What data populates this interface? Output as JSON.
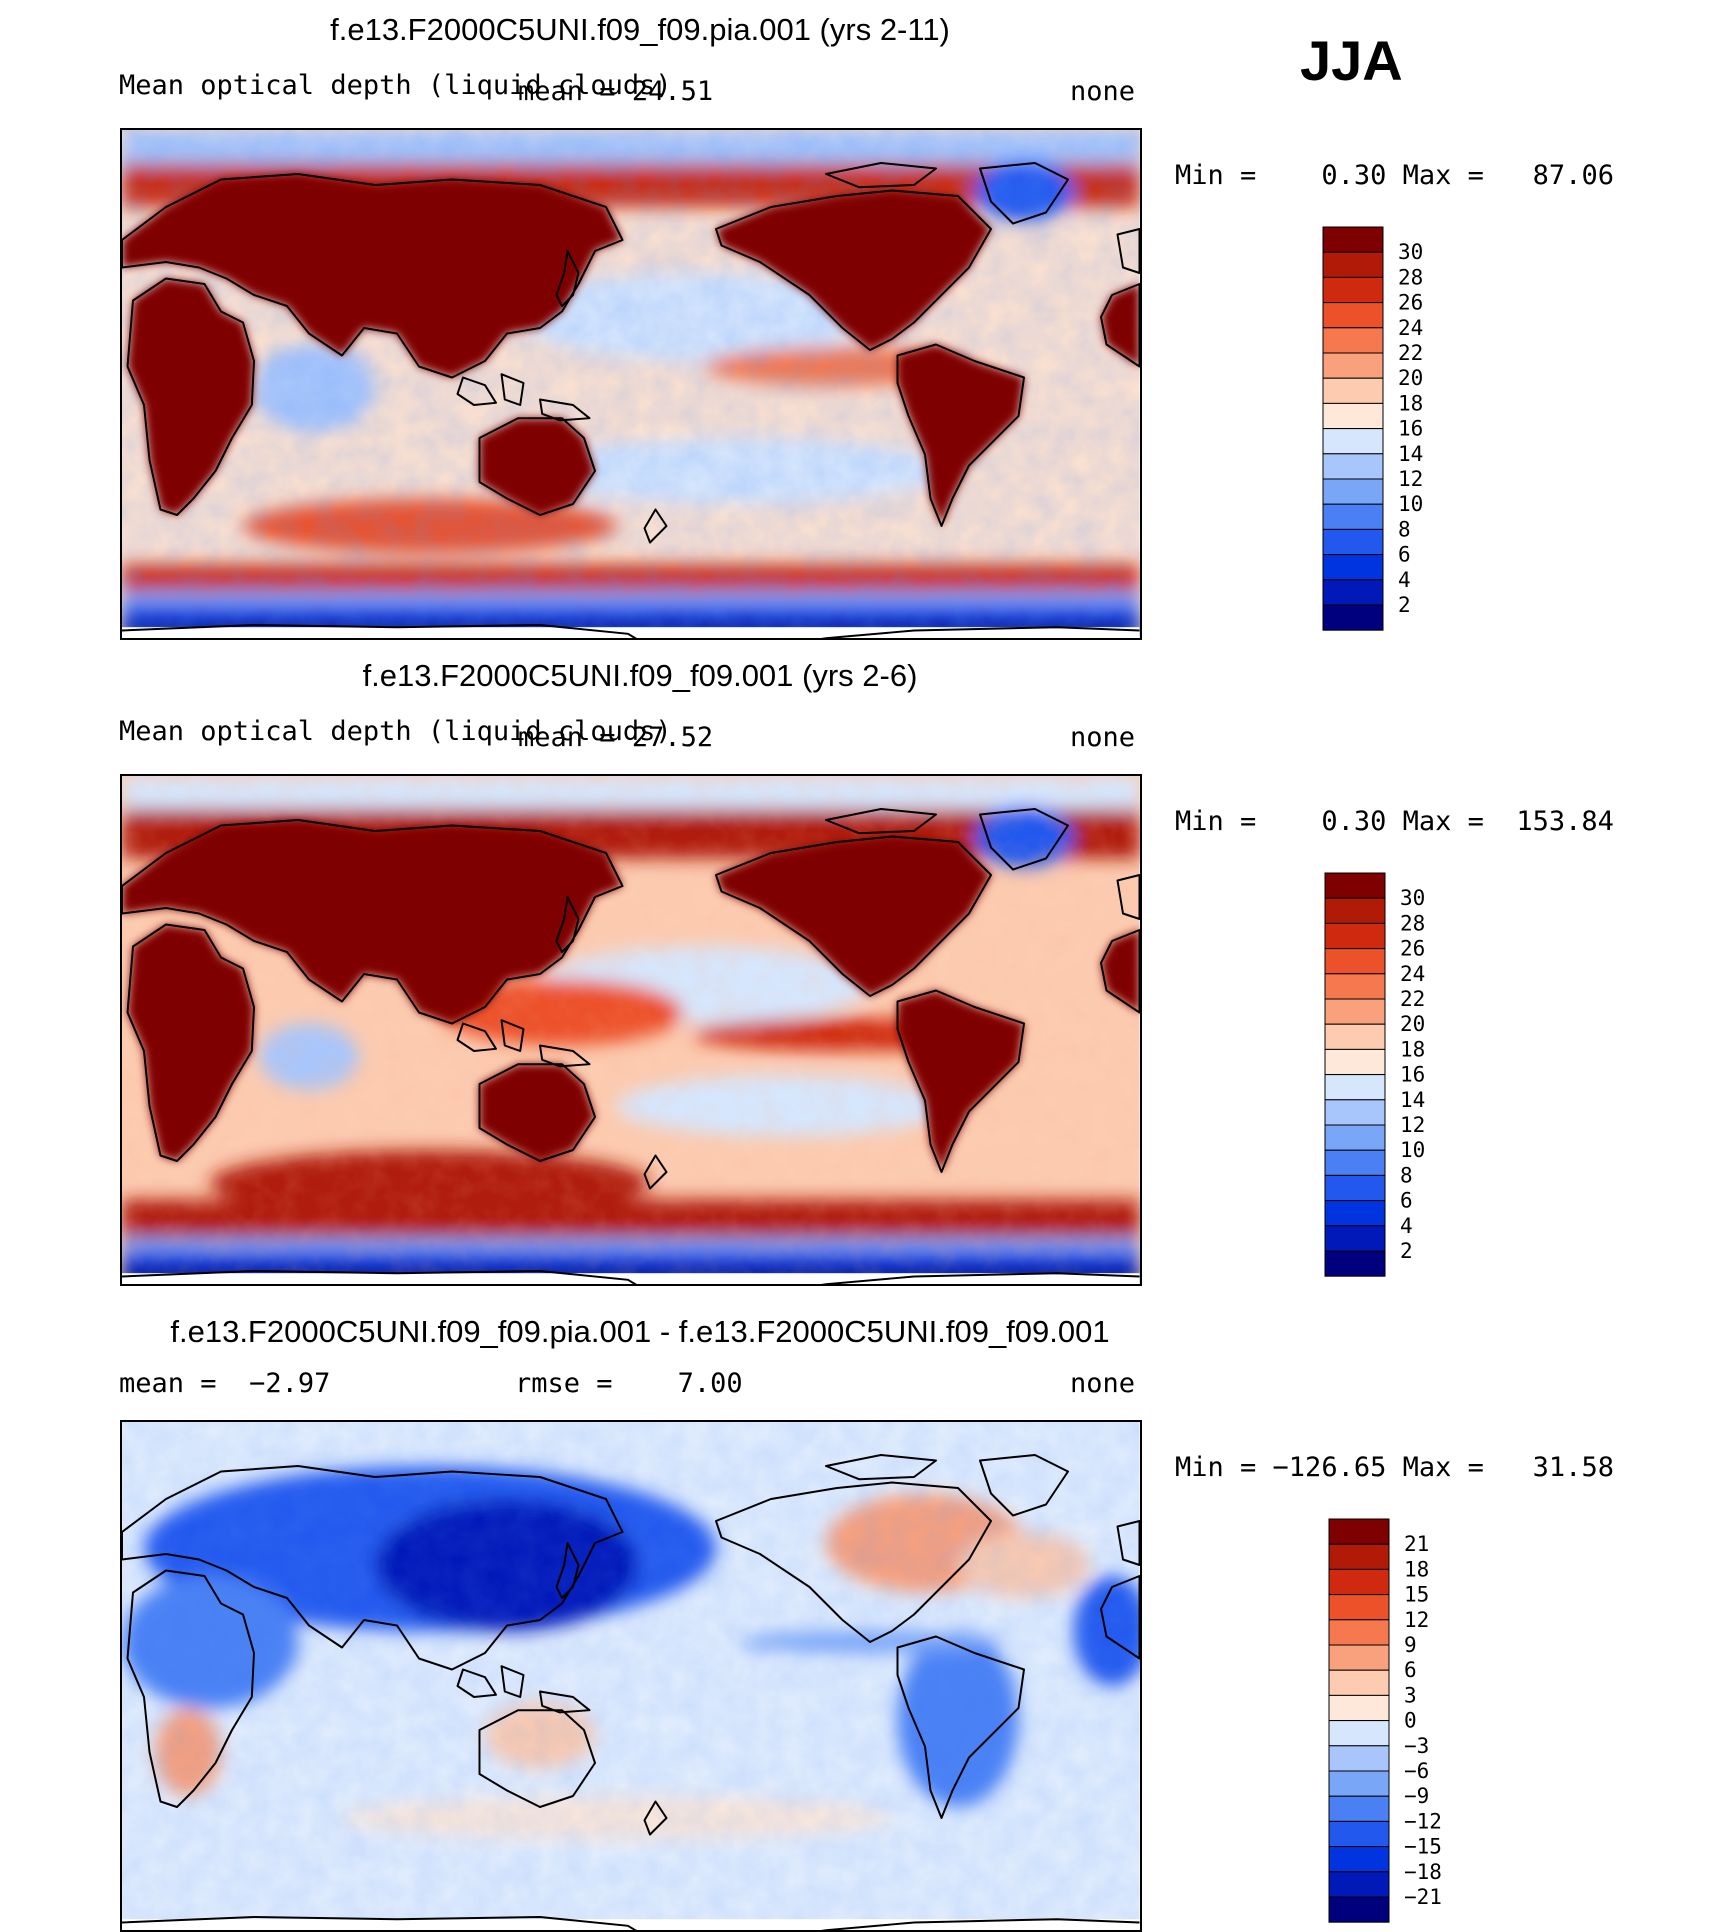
{
  "season": "JJA",
  "panels": [
    {
      "title": "f.e13.F2000C5UNI.f09_f09.pia.001 (yrs 2-11)",
      "variable": "Mean optical depth (liquid clouds)",
      "stat1_label": "mean =",
      "stat1_value": "24.51",
      "units": "none",
      "min_label": "Min =",
      "min_value": "0.30",
      "max_label": "Max =",
      "max_value": "87.06"
    },
    {
      "title": "f.e13.F2000C5UNI.f09_f09.001 (yrs 2-6)",
      "variable": "Mean optical depth (liquid clouds)",
      "stat1_label": "mean =",
      "stat1_value": "27.52",
      "units": "none",
      "min_label": "Min =",
      "min_value": "0.30",
      "max_label": "Max =",
      "max_value": "153.84"
    },
    {
      "title": "f.e13.F2000C5UNI.f09_f09.pia.001 - f.e13.F2000C5UNI.f09_f09.001",
      "stat1_label": "mean =",
      "stat1_value": "−2.97",
      "stat2_label": "rmse =",
      "stat2_value": "7.00",
      "units": "none",
      "min_label": "Min =",
      "min_value": "−126.65",
      "max_label": "Max =",
      "max_value": "31.58"
    }
  ],
  "chart_data": [
    {
      "type": "heatmap",
      "projection": "cylindrical equidistant, global, centered on Pacific",
      "title": "f.e13.F2000C5UNI.f09_f09.pia.001 (yrs 2-11)",
      "variable": "Mean optical depth (liquid clouds)",
      "units": "none",
      "mean": 24.51,
      "min": 0.3,
      "max": 87.06,
      "colorbar_levels": [
        2,
        4,
        6,
        8,
        10,
        12,
        14,
        16,
        18,
        20,
        22,
        24,
        26,
        28,
        30
      ],
      "colorbar_colors": [
        "#00007f",
        "#0019b8",
        "#0034e0",
        "#2258ee",
        "#4a80f4",
        "#7aa6f8",
        "#a8c6fb",
        "#d6e6fd",
        "#fde8da",
        "#fccbb0",
        "#f9a07c",
        "#f5784e",
        "#ec5129",
        "#cf2a10",
        "#b01a07",
        "#7f0000"
      ]
    },
    {
      "type": "heatmap",
      "projection": "cylindrical equidistant, global, centered on Pacific",
      "title": "f.e13.F2000C5UNI.f09_f09.001 (yrs 2-6)",
      "variable": "Mean optical depth (liquid clouds)",
      "units": "none",
      "mean": 27.52,
      "min": 0.3,
      "max": 153.84,
      "colorbar_levels": [
        2,
        4,
        6,
        8,
        10,
        12,
        14,
        16,
        18,
        20,
        22,
        24,
        26,
        28,
        30
      ],
      "colorbar_colors": [
        "#00007f",
        "#0019b8",
        "#0034e0",
        "#2258ee",
        "#4a80f4",
        "#7aa6f8",
        "#a8c6fb",
        "#d6e6fd",
        "#fde8da",
        "#fccbb0",
        "#f9a07c",
        "#f5784e",
        "#ec5129",
        "#cf2a10",
        "#b01a07",
        "#7f0000"
      ]
    },
    {
      "type": "heatmap",
      "projection": "cylindrical equidistant, global, centered on Pacific",
      "title": "f.e13.F2000C5UNI.f09_f09.pia.001 - f.e13.F2000C5UNI.f09_f09.001",
      "units": "none",
      "mean": -2.97,
      "rmse": 7.0,
      "min": -126.65,
      "max": 31.58,
      "colorbar_levels": [
        -21,
        -18,
        -15,
        -12,
        -9,
        -6,
        -3,
        0,
        3,
        6,
        9,
        12,
        15,
        18,
        21
      ],
      "colorbar_colors": [
        "#00007f",
        "#0019b8",
        "#0034e0",
        "#2258ee",
        "#4a80f4",
        "#7aa6f8",
        "#a8c6fb",
        "#d6e6fd",
        "#fde8da",
        "#fccbb0",
        "#f9a07c",
        "#f5784e",
        "#ec5129",
        "#cf2a10",
        "#b01a07",
        "#7f0000"
      ]
    }
  ]
}
